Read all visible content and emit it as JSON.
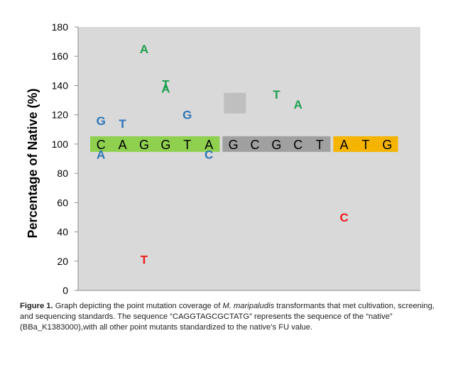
{
  "chart_data": {
    "type": "scatter",
    "ylabel": "Percentage of Native (%)",
    "xlabel": "",
    "ylim": [
      0,
      180
    ],
    "yticks": [
      0,
      20,
      40,
      60,
      80,
      100,
      120,
      140,
      160,
      180
    ],
    "grid": false,
    "native_sequence": {
      "value": 100,
      "letters": [
        "C",
        "A",
        "G",
        "G",
        "T",
        "A",
        "G",
        "C",
        "G",
        "C",
        "T",
        "A",
        "T",
        "G"
      ],
      "segments": [
        {
          "start": 0,
          "end": 5,
          "color": "#8fd14f"
        },
        {
          "start": 6,
          "end": 10,
          "color": "#a0a0a0"
        },
        {
          "start": 11,
          "end": 13,
          "color": "#f5b400"
        }
      ],
      "placeholder_position": 6
    },
    "mutants": [
      {
        "position": 0,
        "base": "G",
        "y": 116,
        "color": "#2e75b6"
      },
      {
        "position": 0,
        "base": "A",
        "y": 93,
        "color": "#2e75b6"
      },
      {
        "position": 1,
        "base": "T",
        "y": 114,
        "color": "#2e75b6"
      },
      {
        "position": 2,
        "base": "A",
        "y": 165,
        "color": "#1fa050"
      },
      {
        "position": 2,
        "base": "T",
        "y": 21,
        "color": "#ee1c1c"
      },
      {
        "position": 3,
        "base": "T",
        "y": 141,
        "color": "#1fa050"
      },
      {
        "position": 3,
        "base": "A",
        "y": 138,
        "color": "#1fa050"
      },
      {
        "position": 4,
        "base": "G",
        "y": 120,
        "color": "#2e75b6"
      },
      {
        "position": 5,
        "base": "C",
        "y": 93,
        "color": "#2e75b6"
      },
      {
        "position": 8,
        "base": "T",
        "y": 134,
        "color": "#1fa050"
      },
      {
        "position": 9,
        "base": "A",
        "y": 127,
        "color": "#1fa050"
      },
      {
        "position": 11,
        "base": "C",
        "y": 50,
        "color": "#ee1c1c"
      }
    ]
  },
  "caption": {
    "label": "Figure 1.",
    "part1": " Graph depicting the point mutation coverage of ",
    "species": "M. maripaludis",
    "part2": " transformants that met cultivation, screening, and sequencing standards. The sequence “CAGGTAGCGCTATG” represents the sequence of the “native” (BBa_K1383000),with all other point mutants standardized to the native’s FU value."
  }
}
